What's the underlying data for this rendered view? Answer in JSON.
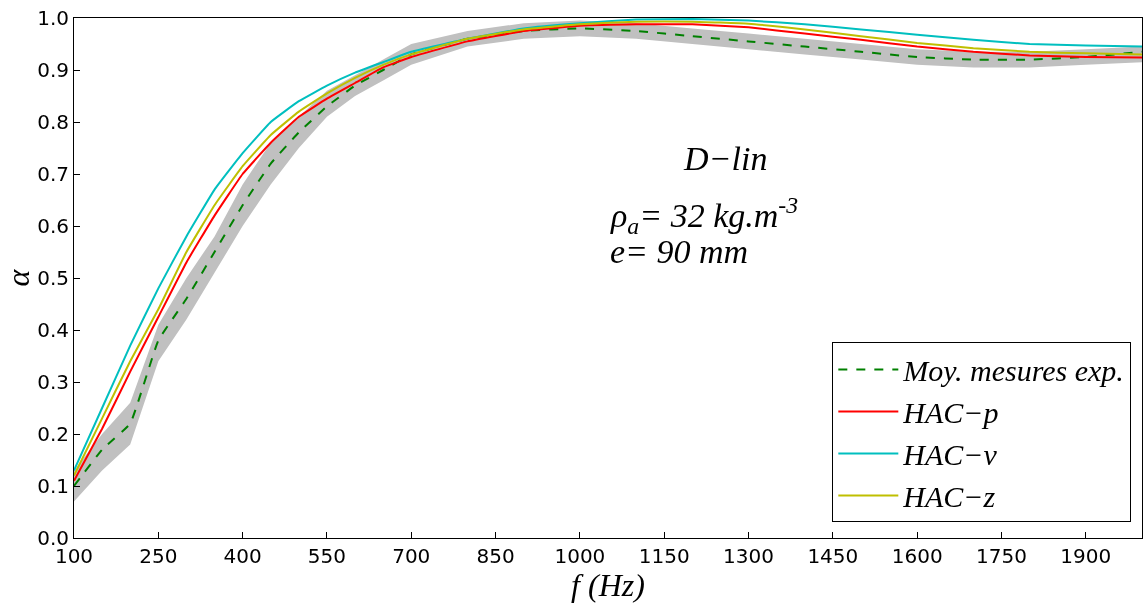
{
  "chart_data": {
    "type": "line",
    "xlabel": "f (Hz)",
    "ylabel": "α",
    "x": [
      100,
      150,
      200,
      250,
      300,
      350,
      400,
      450,
      500,
      550,
      600,
      650,
      700,
      800,
      900,
      1000,
      1100,
      1200,
      1300,
      1400,
      1500,
      1600,
      1700,
      1800,
      1900,
      2000
    ],
    "series": [
      {
        "name": "Moy. mesures exp.",
        "color": "#008000",
        "line_style": "dashed",
        "values": [
          0.1,
          0.17,
          0.22,
          0.38,
          0.46,
          0.55,
          0.64,
          0.72,
          0.78,
          0.83,
          0.87,
          0.9,
          0.93,
          0.96,
          0.975,
          0.98,
          0.975,
          0.965,
          0.955,
          0.945,
          0.935,
          0.925,
          0.92,
          0.92,
          0.925,
          0.935
        ],
        "lower": [
          0.07,
          0.13,
          0.18,
          0.34,
          0.42,
          0.51,
          0.6,
          0.68,
          0.75,
          0.81,
          0.85,
          0.88,
          0.91,
          0.945,
          0.96,
          0.965,
          0.96,
          0.95,
          0.94,
          0.93,
          0.92,
          0.91,
          0.905,
          0.905,
          0.91,
          0.915
        ],
        "upper": [
          0.13,
          0.2,
          0.26,
          0.41,
          0.5,
          0.58,
          0.68,
          0.76,
          0.81,
          0.86,
          0.89,
          0.92,
          0.95,
          0.975,
          0.99,
          0.995,
          0.99,
          0.98,
          0.97,
          0.96,
          0.95,
          0.94,
          0.935,
          0.935,
          0.94,
          0.945
        ]
      },
      {
        "name": "HAC−p",
        "color": "#ff0000",
        "values": [
          0.11,
          0.21,
          0.32,
          0.425,
          0.53,
          0.62,
          0.7,
          0.76,
          0.81,
          0.845,
          0.875,
          0.905,
          0.925,
          0.955,
          0.975,
          0.985,
          0.988,
          0.988,
          0.982,
          0.97,
          0.958,
          0.945,
          0.935,
          0.928,
          0.925,
          0.924
        ]
      },
      {
        "name": "HAC−v",
        "color": "#00bfbf",
        "values": [
          0.13,
          0.25,
          0.37,
          0.48,
          0.58,
          0.67,
          0.74,
          0.8,
          0.84,
          0.87,
          0.895,
          0.915,
          0.935,
          0.96,
          0.98,
          0.99,
          0.997,
          0.998,
          0.995,
          0.988,
          0.978,
          0.968,
          0.958,
          0.95,
          0.947,
          0.945
        ]
      },
      {
        "name": "HAC−z",
        "color": "#bfbf00",
        "values": [
          0.12,
          0.23,
          0.34,
          0.44,
          0.55,
          0.64,
          0.715,
          0.775,
          0.82,
          0.855,
          0.885,
          0.91,
          0.93,
          0.96,
          0.978,
          0.988,
          0.993,
          0.993,
          0.989,
          0.978,
          0.965,
          0.952,
          0.942,
          0.935,
          0.932,
          0.93
        ]
      }
    ],
    "xlim": [
      100,
      2000
    ],
    "xticks": [
      100,
      250,
      400,
      550,
      700,
      850,
      1000,
      1150,
      1300,
      1450,
      1600,
      1750,
      1900
    ],
    "ylim": [
      0,
      1
    ],
    "yticks": [
      {
        "value": 0,
        "label": "0.0"
      },
      0.1,
      0.2,
      0.3,
      0.4,
      0.5,
      0.6,
      0.7,
      0.8,
      0.9,
      {
        "value": 1,
        "label": "1.0"
      }
    ],
    "annotations": [
      "D−lin",
      "ρ$_{a}$= 32 kg.m$^{-3}$",
      "e= 90 mm"
    ],
    "legend": "bottom right"
  }
}
